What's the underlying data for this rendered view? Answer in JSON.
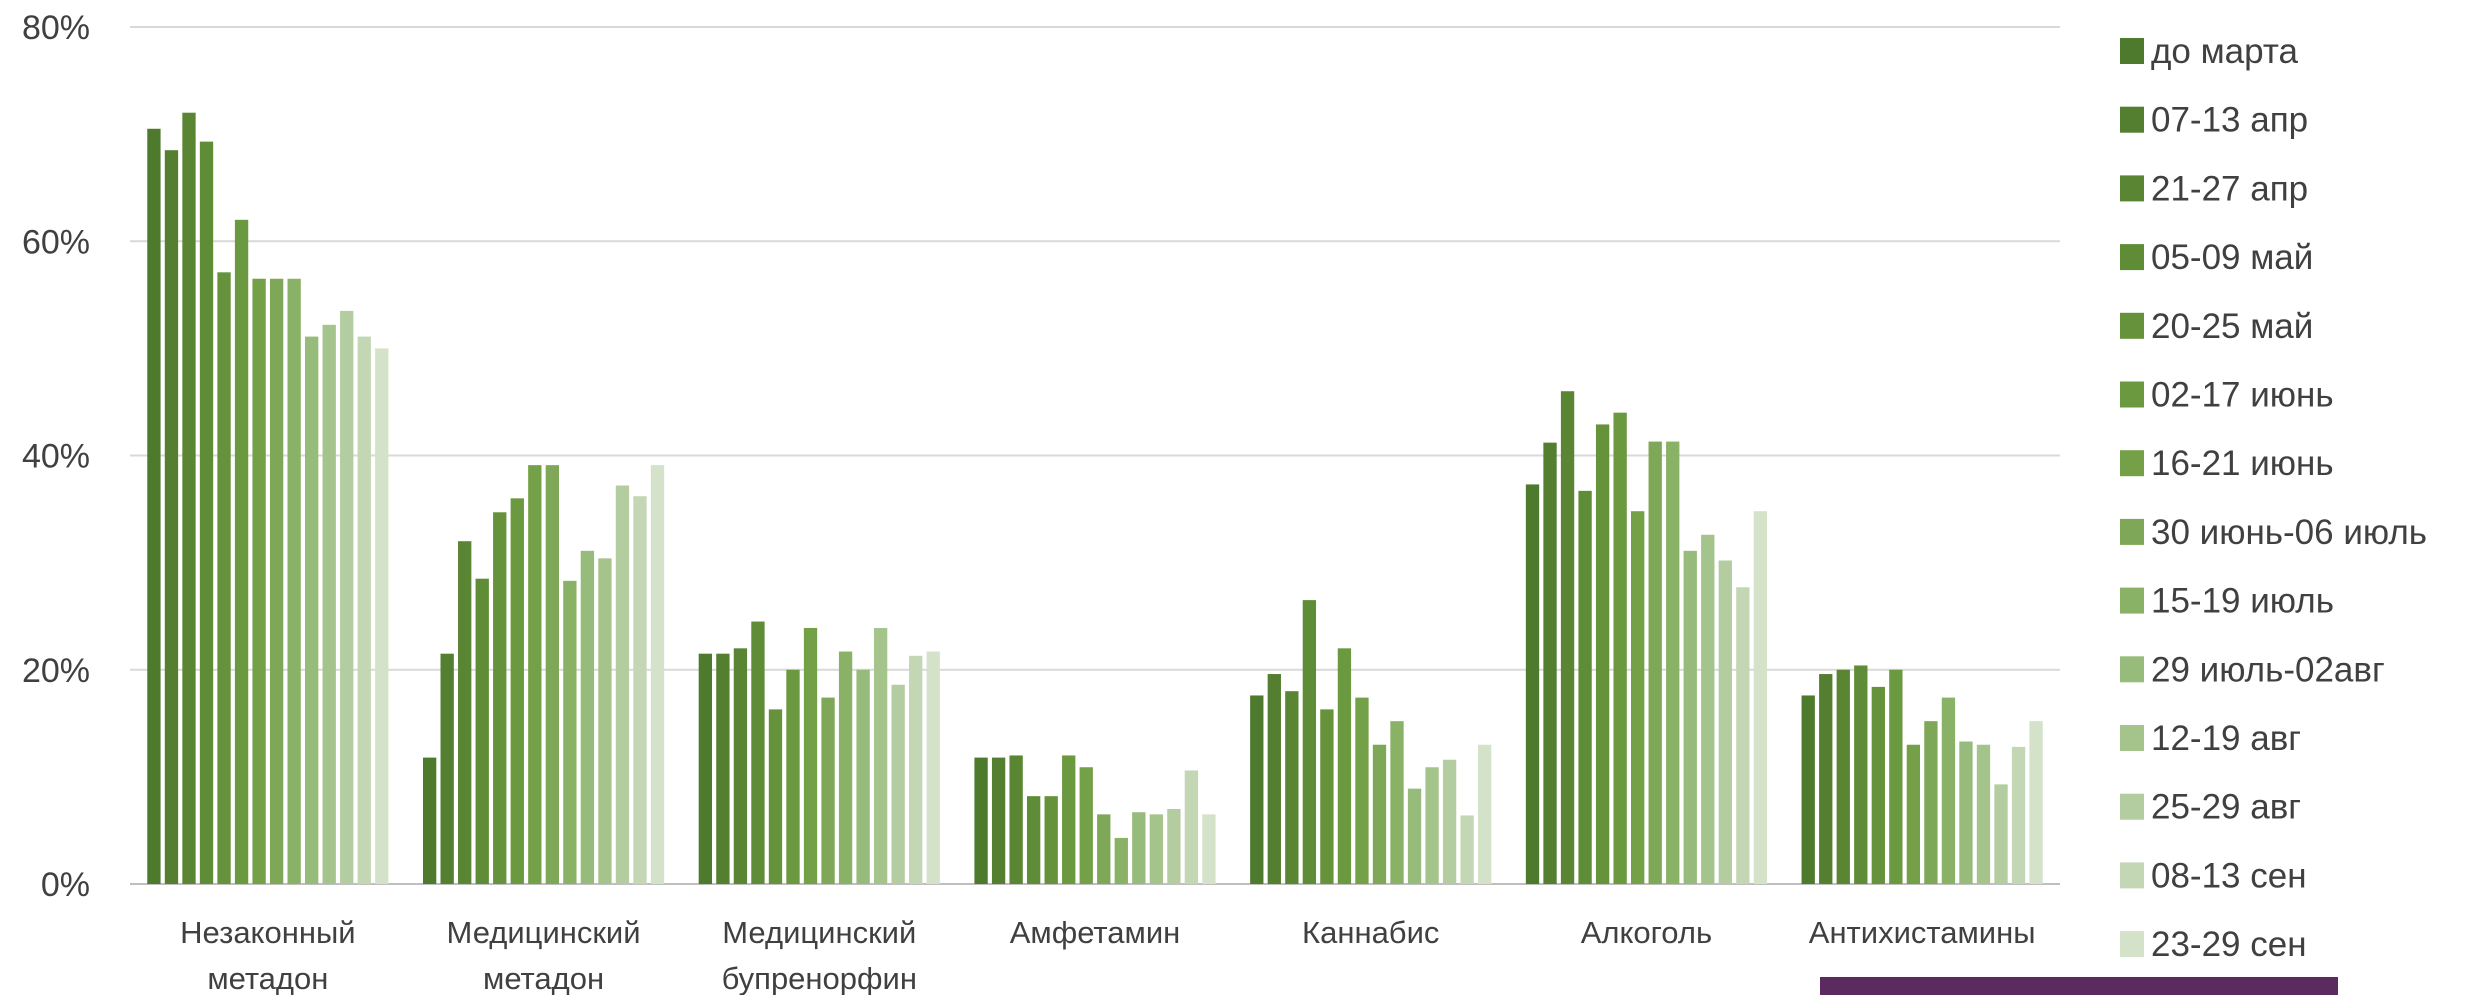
{
  "chart_data": {
    "type": "bar",
    "categories": [
      [
        "Незаконный",
        "метадон"
      ],
      [
        "Медицинский",
        "метадон"
      ],
      [
        "Медицинский",
        "бупренорфин"
      ],
      [
        "Амфетамин"
      ],
      [
        "Каннабис"
      ],
      [
        "Алкоголь"
      ],
      [
        "Антихистамины"
      ]
    ],
    "series": [
      {
        "name": "до марта",
        "color": "#4e7a2e",
        "values": [
          70.5,
          11.8,
          21.5,
          11.8,
          17.6,
          37.3,
          17.6
        ]
      },
      {
        "name": "07-13 апр",
        "color": "#547f31",
        "values": [
          68.5,
          21.5,
          21.5,
          11.8,
          19.6,
          41.2,
          19.6
        ]
      },
      {
        "name": "21-27 апр",
        "color": "#5a8633",
        "values": [
          72.0,
          32.0,
          22.0,
          12.0,
          18.0,
          46.0,
          20.0
        ]
      },
      {
        "name": "05-09 май",
        "color": "#5f8c36",
        "values": [
          69.3,
          28.5,
          24.5,
          8.2,
          26.5,
          36.7,
          20.4
        ]
      },
      {
        "name": "20-25 май",
        "color": "#65923a",
        "values": [
          57.1,
          34.7,
          16.3,
          8.2,
          16.3,
          42.9,
          18.4
        ]
      },
      {
        "name": "02-17 июнь",
        "color": "#6b993f",
        "values": [
          62.0,
          36.0,
          20.0,
          12.0,
          22.0,
          44.0,
          20.0
        ]
      },
      {
        "name": "16-21 июнь",
        "color": "#74a047",
        "values": [
          56.5,
          39.1,
          23.9,
          10.9,
          17.4,
          34.8,
          13.0
        ]
      },
      {
        "name": "30 июнь-06 июль",
        "color": "#7ea857",
        "values": [
          56.5,
          39.1,
          17.4,
          6.5,
          13.0,
          41.3,
          15.2
        ]
      },
      {
        "name": "15-19 июль",
        "color": "#8ab267",
        "values": [
          56.5,
          28.3,
          21.7,
          4.3,
          15.2,
          41.3,
          17.4
        ]
      },
      {
        "name": "29 июль-02авг",
        "color": "#97bb7a",
        "values": [
          51.1,
          31.1,
          20.0,
          6.7,
          8.9,
          31.1,
          13.3
        ]
      },
      {
        "name": "12-19 авг",
        "color": "#a5c48c",
        "values": [
          52.2,
          30.4,
          23.9,
          6.5,
          10.9,
          32.6,
          13.0
        ]
      },
      {
        "name": "25-29 авг",
        "color": "#b3cda0",
        "values": [
          53.5,
          37.2,
          18.6,
          7.0,
          11.6,
          30.2,
          9.3
        ]
      },
      {
        "name": "08-13 сен",
        "color": "#c3d7b5",
        "values": [
          51.1,
          36.2,
          21.3,
          10.6,
          6.4,
          27.7,
          12.8
        ]
      },
      {
        "name": "23-29 сен",
        "color": "#d3e2c9",
        "values": [
          50.0,
          39.1,
          21.7,
          6.5,
          13.0,
          34.8,
          15.2
        ]
      }
    ],
    "y_ticks": [
      "0%",
      "20%",
      "40%",
      "60%",
      "80%"
    ],
    "ylim": [
      0,
      80
    ],
    "grid": true,
    "legend": "right",
    "xlabel": "",
    "ylabel": "",
    "title": ""
  },
  "decoration": {
    "accent_bar_color": "#5b2a5e"
  }
}
